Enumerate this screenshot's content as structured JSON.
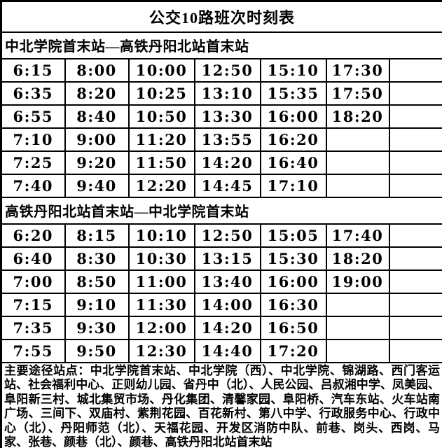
{
  "title": "公交10路班次时刻表",
  "colors": {
    "header_red": "#ff0000",
    "note_blue": "#0000ff",
    "text_black": "#000000",
    "background": "#ffffff"
  },
  "sections": [
    {
      "header": "中北学院首末站—高铁丹阳北站首末站",
      "rows": [
        [
          "6:15",
          "8:00",
          "10:00",
          "12:50",
          "15:10",
          "17:30",
          ""
        ],
        [
          "6:35",
          "8:20",
          "10:25",
          "13:10",
          "15:35",
          "17:50",
          ""
        ],
        [
          "6:55",
          "8:40",
          "10:50",
          "13:30",
          "16:00",
          "18:20",
          ""
        ],
        [
          "7:10",
          "9:00",
          "11:20",
          "13:55",
          "16:20",
          "",
          ""
        ],
        [
          "7:25",
          "9:20",
          "11:50",
          "14:20",
          "16:40",
          "",
          ""
        ],
        [
          "7:40",
          "9:40",
          "12:20",
          "14:45",
          "17:10",
          "",
          ""
        ]
      ]
    },
    {
      "header": "高铁丹阳北站首末站—中北学院首末站",
      "rows": [
        [
          "6:20",
          "8:15",
          "10:10",
          "12:50",
          "15:05",
          "17:40",
          ""
        ],
        [
          "6:40",
          "8:30",
          "10:30",
          "13:15",
          "15:30",
          "18:20",
          ""
        ],
        [
          "7:00",
          "8:50",
          "11:00",
          "13:40",
          "16:00",
          "19:00",
          ""
        ],
        [
          "7:15",
          "9:10",
          "11:30",
          "14:00",
          "16:30",
          "",
          ""
        ],
        [
          "7:35",
          "9:30",
          "12:00",
          "14:20",
          "16:50",
          "",
          ""
        ],
        [
          "7:55",
          "9:50",
          "12:30",
          "14:40",
          "17:20",
          "",
          ""
        ]
      ]
    }
  ],
  "note": "主要途径站点：中北学院首末站、中北学院（西）、中北学院、锦湖路、西门客运站、社会福利中心、正则幼儿园、省丹中（北）、人民公园、吕叔湘中学、凤美园、阜阳新三村、城北集贸市场、丹化集团、清馨家园、阜阳桥、汽车东站、火车站南广场、三间下、双庙村、紫荆花园、百花新村、第八中学、行政服务中心、行政中心（北）、丹阳师范（北）、天福花园、开发区消防中队、前巷、岗头、西岗、马家、张巷、颜巷（北）、颜巷、高铁丹阳北站首末站"
}
